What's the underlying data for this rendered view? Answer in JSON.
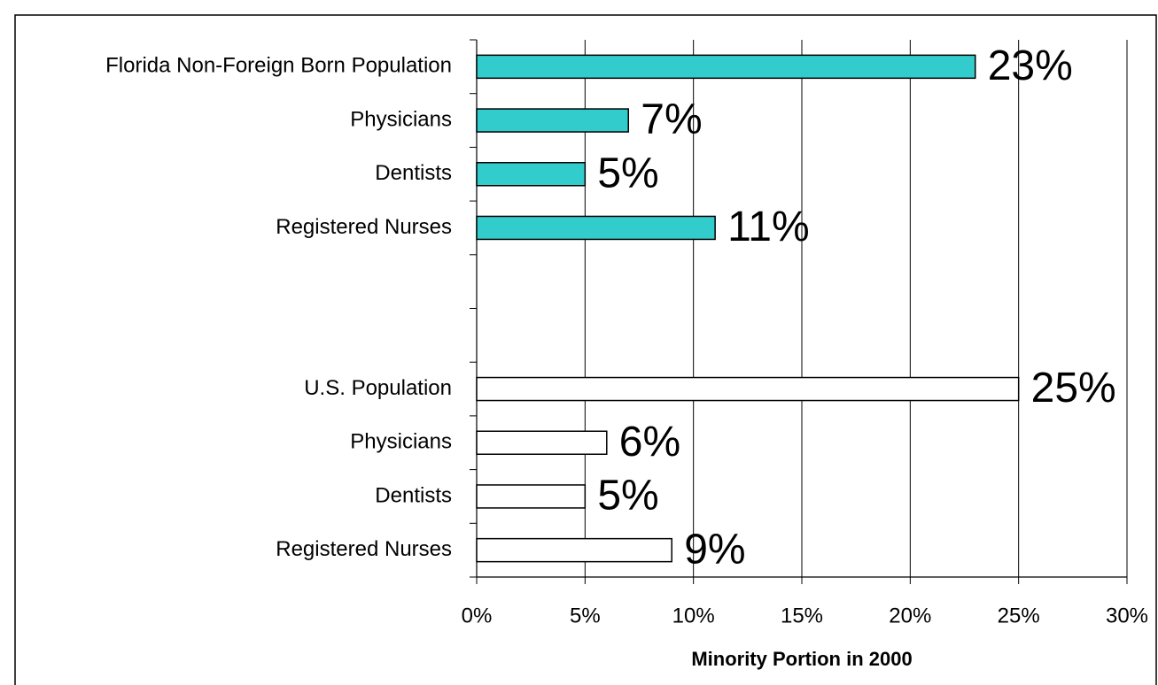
{
  "chart_data": {
    "type": "barh",
    "categories": [
      "Florida Non-Foreign Born Population",
      "Physicians",
      "Dentists",
      "Registered Nurses",
      null,
      null,
      "U.S. Population",
      "Physicians",
      "Dentists",
      "Registered Nurses"
    ],
    "values": [
      23,
      7,
      5,
      11,
      null,
      null,
      25,
      6,
      5,
      9
    ],
    "value_labels": [
      "23%",
      "7%",
      "5%",
      "11%",
      null,
      null,
      "25%",
      "6%",
      "5%",
      "9%"
    ],
    "colors": [
      "#33cccc",
      "#33cccc",
      "#33cccc",
      "#33cccc",
      null,
      null,
      "#ffffff",
      "#ffffff",
      "#ffffff",
      "#ffffff"
    ],
    "x_label": "Minority Portion in 2000",
    "xlim": [
      0,
      30
    ],
    "xticks": [
      {
        "value": 0,
        "label": "0%"
      },
      {
        "value": 5,
        "label": "5%"
      },
      {
        "value": 10,
        "label": "10%"
      },
      {
        "value": 15,
        "label": "15%"
      },
      {
        "value": 20,
        "label": "20%"
      },
      {
        "value": 25,
        "label": "25%"
      },
      {
        "value": 30,
        "label": "30%"
      }
    ],
    "grid": true
  }
}
